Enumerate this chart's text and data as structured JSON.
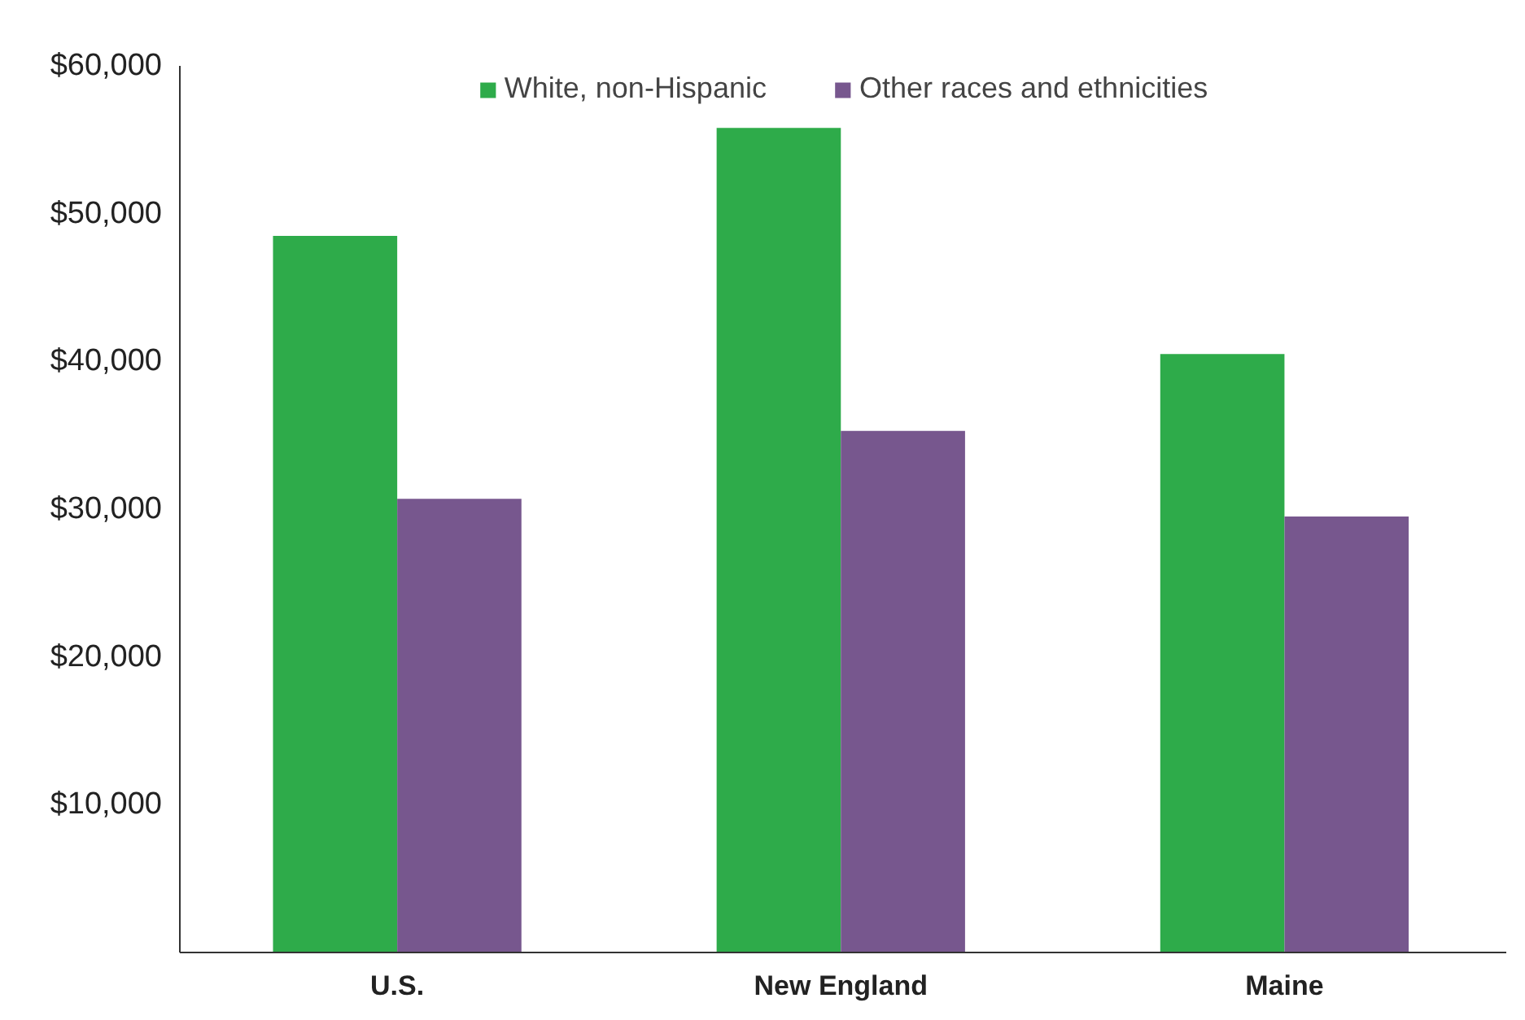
{
  "chart_data": {
    "type": "bar",
    "categories": [
      "U.S.",
      "New England",
      "Maine"
    ],
    "series": [
      {
        "name": "White, non-Hispanic",
        "color": "#2eab4a",
        "values": [
          48500,
          55800,
          40500
        ]
      },
      {
        "name": "Other races and ethnicities",
        "color": "#77578e",
        "values": [
          30700,
          35300,
          29500
        ]
      }
    ],
    "ylim": [
      0,
      60000
    ],
    "yticks": [
      {
        "value": 10000,
        "label": "$10,000"
      },
      {
        "value": 20000,
        "label": "$20,000"
      },
      {
        "value": 30000,
        "label": "$30,000"
      },
      {
        "value": 40000,
        "label": "$40,000"
      },
      {
        "value": 50000,
        "label": "$50,000"
      },
      {
        "value": 60000,
        "label": "$60,000"
      }
    ],
    "grid": false,
    "legend": "top"
  }
}
